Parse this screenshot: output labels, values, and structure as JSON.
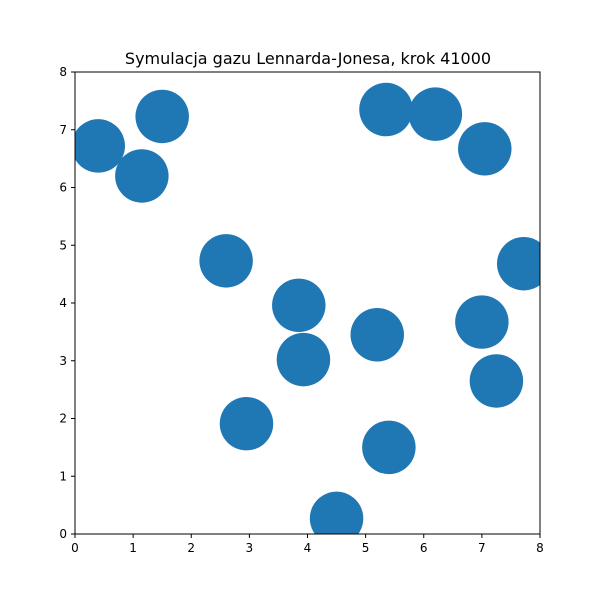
{
  "chart_data": {
    "type": "scatter",
    "title": "Symulacja gazu Lennarda-Jonesa, krok 41000",
    "xlabel": "",
    "ylabel": "",
    "xlim": [
      0,
      8
    ],
    "ylim": [
      0,
      8
    ],
    "xticks": [
      "0",
      "1",
      "2",
      "3",
      "4",
      "5",
      "6",
      "7",
      "8"
    ],
    "yticks": [
      "0",
      "1",
      "2",
      "3",
      "4",
      "5",
      "6",
      "7",
      "8"
    ],
    "grid": false,
    "marker_color": "#1f77b4",
    "marker_radius_data_units": 0.46,
    "points": [
      {
        "x": 0.4,
        "y": 6.72
      },
      {
        "x": 1.15,
        "y": 6.2
      },
      {
        "x": 1.5,
        "y": 7.23
      },
      {
        "x": 2.6,
        "y": 4.73
      },
      {
        "x": 2.95,
        "y": 1.91
      },
      {
        "x": 3.85,
        "y": 3.96
      },
      {
        "x": 3.93,
        "y": 3.02
      },
      {
        "x": 4.5,
        "y": 0.27
      },
      {
        "x": 5.2,
        "y": 3.45
      },
      {
        "x": 5.35,
        "y": 7.35
      },
      {
        "x": 5.4,
        "y": 1.5
      },
      {
        "x": 6.2,
        "y": 7.27
      },
      {
        "x": 7.0,
        "y": 3.67
      },
      {
        "x": 7.05,
        "y": 6.67
      },
      {
        "x": 7.25,
        "y": 2.65
      },
      {
        "x": 7.72,
        "y": 4.68
      }
    ]
  }
}
